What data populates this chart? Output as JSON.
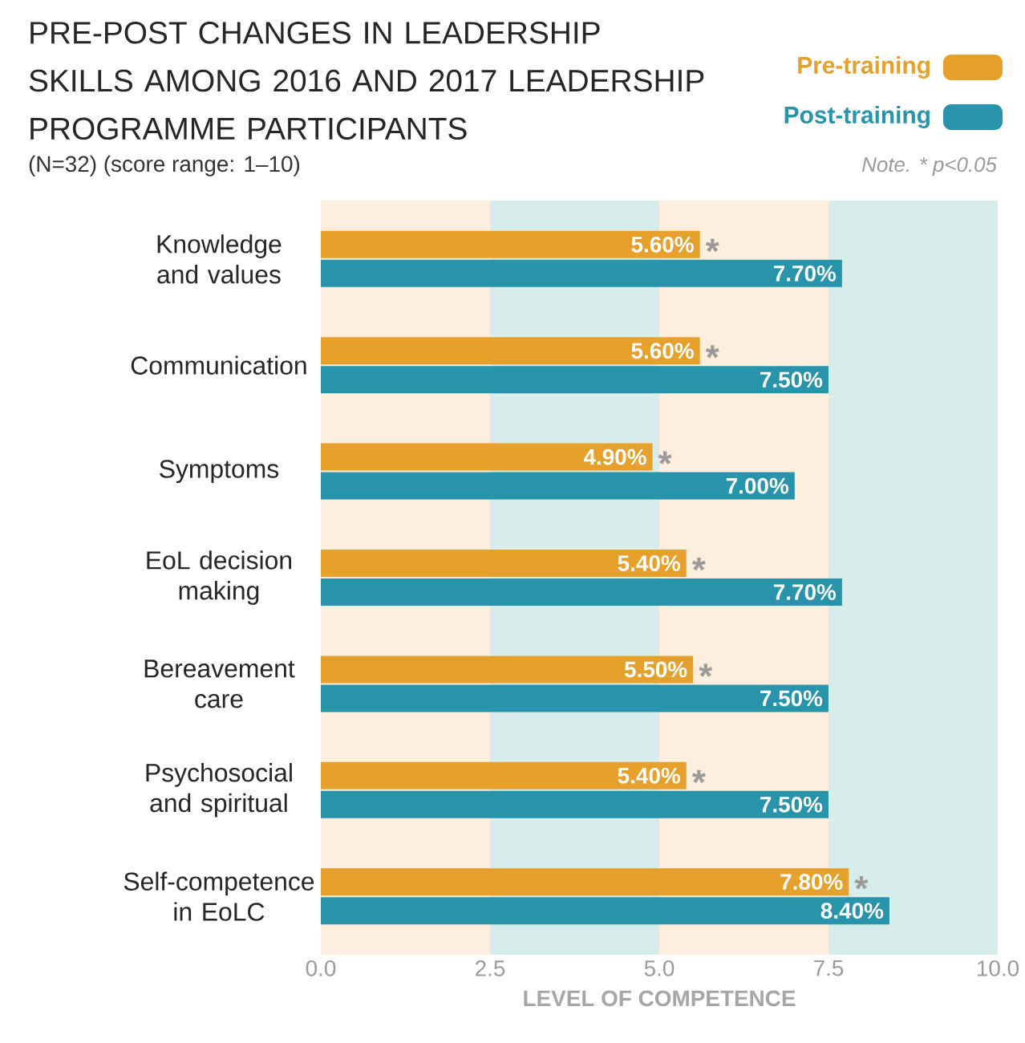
{
  "chart_data": {
    "type": "bar",
    "orientation": "horizontal",
    "title": "PRE-POST CHANGES IN LEADERSHIP SKILLS AMONG 2016 AND 2017 LEADERSHIP PROGRAMME PARTICIPANTS",
    "subtitle": "(N=32) (score range: 1–10)",
    "xlabel": "LEVEL OF COMPETENCE",
    "categories": [
      "Knowledge and values",
      "Communication",
      "Symptoms",
      "EoL decision making",
      "Bereavement care",
      "Psychosocial and spiritual",
      "Self-competence in EoLC"
    ],
    "series": [
      {
        "name": "Pre-training",
        "color": "#e6a02c",
        "values": [
          5.6,
          5.6,
          4.9,
          5.4,
          5.5,
          5.4,
          7.8
        ],
        "value_labels": [
          "5.60%",
          "5.60%",
          "4.90%",
          "5.40%",
          "5.50%",
          "5.40%",
          "7.80%"
        ]
      },
      {
        "name": "Post-training",
        "color": "#2894ac",
        "values": [
          7.7,
          7.5,
          7.0,
          7.7,
          7.5,
          7.5,
          8.4
        ],
        "value_labels": [
          "7.70%",
          "7.50%",
          "7.00%",
          "7.70%",
          "7.50%",
          "7.50%",
          "8.40%"
        ]
      }
    ],
    "xlim": [
      0,
      10
    ],
    "xticks": [
      {
        "value": 0,
        "label": "0.0"
      },
      {
        "value": 2.5,
        "label": "2.5"
      },
      {
        "value": 5,
        "label": "5.0"
      },
      {
        "value": 7.5,
        "label": "7.5"
      },
      {
        "value": 10,
        "label": "10.0"
      }
    ],
    "bands": [
      {
        "axis": "x",
        "from": 0,
        "to": 2.5,
        "color": "#fdeedd"
      },
      {
        "axis": "x",
        "from": 2.5,
        "to": 5,
        "color": "#d7edea"
      },
      {
        "axis": "x",
        "from": 5,
        "to": 7.5,
        "color": "#fdeedd"
      },
      {
        "axis": "x",
        "from": 7.5,
        "to": 10,
        "color": "#d7edea"
      }
    ],
    "annotations": [
      {
        "text": "*",
        "x": 5.6,
        "y": "Knowledge and values"
      },
      {
        "text": "*",
        "x": 5.6,
        "y": "Communication"
      },
      {
        "text": "*",
        "x": 4.9,
        "y": "Symptoms"
      },
      {
        "text": "*",
        "x": 5.4,
        "y": "EoL decision making"
      },
      {
        "text": "*",
        "x": 5.5,
        "y": "Bereavement care"
      },
      {
        "text": "*",
        "x": 5.4,
        "y": "Psychosocial and spiritual"
      },
      {
        "text": "*",
        "x": 7.8,
        "y": "Self-competence in EoLC"
      },
      "Note. * p<0.05"
    ],
    "legend": "top right"
  }
}
